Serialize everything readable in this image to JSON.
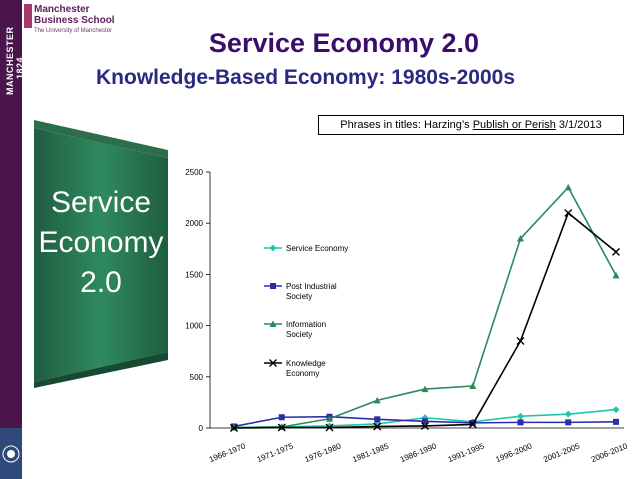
{
  "branding": {
    "school_line1": "Manchester",
    "school_line2": "Business School",
    "university": "The University of Manchester",
    "side_text": "MANCHESTER 1824"
  },
  "slide": {
    "title": "Service Economy 2.0",
    "subtitle": "Knowledge-Based Economy: 1980s-2000s",
    "source_prefix": "Phrases in titles: Harzing’s ",
    "source_link": "Publish or Perish",
    "source_suffix": " 3/1/2013",
    "badge_line1": "Service",
    "badge_line2": "Economy",
    "badge_line3": "2.0"
  },
  "colors": {
    "title": "#3a0d6b",
    "subtitle": "#2a2a80",
    "badge_fill": "#2f7a55",
    "badge_text": "#ffffff",
    "brand_purple": "#4a154b"
  },
  "chart_data": {
    "type": "line",
    "categories": [
      "1966-1970",
      "1971-1975",
      "1976-1980",
      "1981-1985",
      "1986-1990",
      "1991-1995",
      "1996-2000",
      "2001-2005",
      "2006-2010"
    ],
    "ylim": [
      0,
      2500
    ],
    "yticks": [
      0,
      500,
      1000,
      1500,
      2000,
      2500
    ],
    "legend_position": "left-inside",
    "series": [
      {
        "name": "Service Economy",
        "color": "#1fc7a8",
        "marker": "diamond",
        "values": [
          5,
          10,
          20,
          40,
          100,
          60,
          115,
          135,
          180
        ]
      },
      {
        "name": "Post Industrial Society",
        "color": "#2a2fa8",
        "marker": "square",
        "values": [
          15,
          105,
          110,
          85,
          65,
          50,
          55,
          55,
          60
        ]
      },
      {
        "name": "Information Society",
        "color": "#2a8a5a",
        "marker": "triangle",
        "values": [
          5,
          10,
          90,
          270,
          380,
          410,
          1850,
          2350,
          1490
        ]
      },
      {
        "name": "Knowledge Economy",
        "color": "#000000",
        "marker": "x",
        "values": [
          0,
          5,
          5,
          15,
          20,
          35,
          850,
          2100,
          1720
        ]
      }
    ]
  }
}
